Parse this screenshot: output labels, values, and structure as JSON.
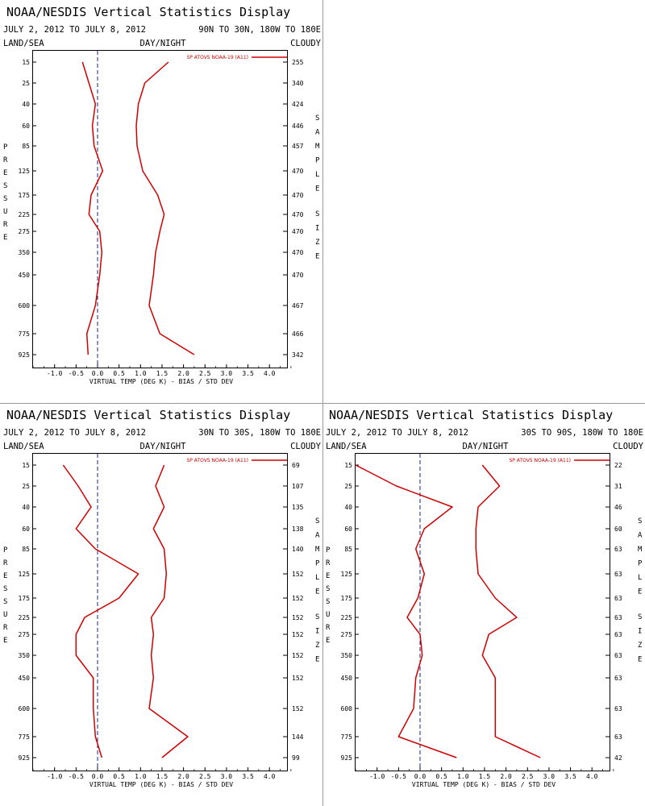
{
  "colors": {
    "series": "#d00000",
    "zero_line": "#1a237e",
    "frame": "#000000",
    "panel_border": "#999999",
    "background": "#ffffff"
  },
  "chart_data": [
    {
      "type": "line",
      "title": "NOAA/NESDIS Vertical Statistics Display",
      "date_range": "JULY 2, 2012 TO JULY 8, 2012",
      "region": "90N TO 30N, 180W TO 180E",
      "header_left": "LAND/SEA",
      "header_center": "DAY/NIGHT",
      "header_right": "CLOUDY",
      "legend": "SP ATOVS NOAA-19 (A11)",
      "ylabel_left": "PRESSURE",
      "ylabel_right": "SAMPLE SIZE",
      "xlabel": "VIRTUAL TEMP (DEG K) - BIAS / STD DEV",
      "xlim": [
        -1.5,
        4.5
      ],
      "xticks": [
        "-1.0",
        "-0.5",
        "0.0",
        "0.5",
        "1.0",
        "1.5",
        "2.0",
        "2.5",
        "3.0",
        "3.5",
        "4.0"
      ],
      "pressure_levels": [
        "15",
        "25",
        "40",
        "60",
        "85",
        "125",
        "175",
        "225",
        "275",
        "350",
        "450",
        "600",
        "775",
        "925"
      ],
      "sample_size": [
        "255",
        "340",
        "424",
        "446",
        "457",
        "470",
        "470",
        "470",
        "470",
        "470",
        "470",
        "467",
        "466",
        "342"
      ],
      "series": [
        {
          "name": "BIAS",
          "values": [
            -0.35,
            -0.2,
            -0.05,
            -0.12,
            -0.08,
            0.12,
            -0.15,
            -0.2,
            0.05,
            0.1,
            0.05,
            -0.05,
            -0.25,
            -0.22
          ]
        },
        {
          "name": "STD DEV",
          "values": [
            1.65,
            1.1,
            0.95,
            0.9,
            0.92,
            1.05,
            1.4,
            1.55,
            1.45,
            1.35,
            1.3,
            1.2,
            1.45,
            2.25
          ]
        }
      ]
    },
    {
      "type": "line",
      "title": "NOAA/NESDIS Vertical Statistics Display",
      "date_range": "JULY 2, 2012 TO JULY 8, 2012",
      "region": "30N TO 30S, 180W TO 180E",
      "header_left": "LAND/SEA",
      "header_center": "DAY/NIGHT",
      "header_right": "CLOUDY",
      "legend": "SP ATOVS NOAA-19 (A11)",
      "ylabel_left": "PRESSURE",
      "ylabel_right": "SAMPLE SIZE",
      "xlabel": "VIRTUAL TEMP (DEG K) - BIAS / STD DEV",
      "xlim": [
        -1.5,
        4.5
      ],
      "xticks": [
        "-1.0",
        "-0.5",
        "0.0",
        "0.5",
        "1.0",
        "1.5",
        "2.0",
        "2.5",
        "3.0",
        "3.5",
        "4.0"
      ],
      "pressure_levels": [
        "15",
        "25",
        "40",
        "60",
        "85",
        "125",
        "175",
        "225",
        "275",
        "350",
        "450",
        "600",
        "775",
        "925"
      ],
      "sample_size": [
        "69",
        "107",
        "135",
        "138",
        "140",
        "152",
        "152",
        "152",
        "152",
        "152",
        "152",
        "152",
        "144",
        "99"
      ],
      "series": [
        {
          "name": "BIAS",
          "values": [
            -0.8,
            -0.45,
            -0.15,
            -0.5,
            -0.05,
            0.95,
            0.5,
            -0.3,
            -0.5,
            -0.5,
            -0.1,
            -0.1,
            -0.05,
            0.1
          ]
        },
        {
          "name": "STD DEV",
          "values": [
            1.55,
            1.35,
            1.55,
            1.3,
            1.55,
            1.6,
            1.55,
            1.25,
            1.3,
            1.25,
            1.3,
            1.2,
            2.1,
            1.5
          ]
        }
      ]
    },
    {
      "type": "line",
      "title": "NOAA/NESDIS Vertical Statistics Display",
      "date_range": "JULY 2, 2012 TO JULY 8, 2012",
      "region": "30S TO 90S, 180W TO 180E",
      "header_left": "LAND/SEA",
      "header_center": "DAY/NIGHT",
      "header_right": "CLOUDY",
      "legend": "SP ATOVS NOAA-19 (A11)",
      "ylabel_left": "PRESSURE",
      "ylabel_right": "SAMPLE SIZE",
      "xlabel": "VIRTUAL TEMP (DEG K) - BIAS / STD DEV",
      "xlim": [
        -1.5,
        4.5
      ],
      "xticks": [
        "-1.0",
        "-0.5",
        "0.0",
        "0.5",
        "1.0",
        "1.5",
        "2.0",
        "2.5",
        "3.0",
        "3.5",
        "4.0"
      ],
      "pressure_levels": [
        "15",
        "25",
        "40",
        "60",
        "85",
        "125",
        "175",
        "225",
        "275",
        "350",
        "450",
        "600",
        "775",
        "925"
      ],
      "sample_size": [
        "22",
        "31",
        "46",
        "60",
        "63",
        "63",
        "63",
        "63",
        "63",
        "63",
        "63",
        "63",
        "63",
        "42"
      ],
      "series": [
        {
          "name": "BIAS",
          "values": [
            -1.5,
            -0.55,
            0.75,
            0.1,
            -0.1,
            0.1,
            -0.05,
            -0.3,
            0.0,
            0.05,
            -0.1,
            -0.15,
            -0.5,
            0.85
          ]
        },
        {
          "name": "STD DEV",
          "values": [
            1.45,
            1.85,
            1.35,
            1.3,
            1.3,
            1.35,
            1.75,
            2.25,
            1.6,
            1.45,
            1.75,
            1.75,
            1.75,
            2.8
          ]
        }
      ]
    }
  ]
}
